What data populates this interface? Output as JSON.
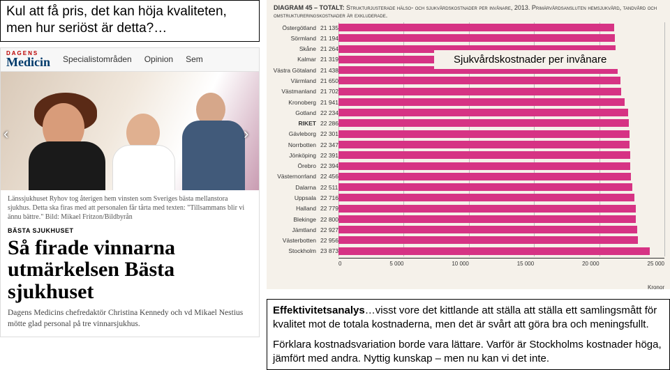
{
  "quote": {
    "text": "Kul att få pris, det kan höja kvaliteten, men hur seriöst är detta?…"
  },
  "news": {
    "logo_top": "DAGENS",
    "logo_bottom": "Medicin",
    "nav": {
      "item1": "Specialistområden",
      "item2": "Opinion",
      "item3": "Sem"
    },
    "caption": "Länssjukhuset Ryhov tog återigen hem vinsten som Sveriges bästa mellanstora sjukhus. Detta ska firas med att personalen får tårta med texten: \"Tillsammans blir vi ännu bättre.\" Bild: Mikael Fritzon/Bildbyrån",
    "kicker": "BÄSTA SJUKHUSET",
    "headline": "Så firade vinnarna utmärkelsen Bästa sjukhuset",
    "lede": "Dagens Medicins chefredaktör Christina Kennedy och vd Mikael Nestius mötte glad personal på tre vinnarsjukhus."
  },
  "chart": {
    "type": "bar",
    "title_prefix": "DIAGRAM 45 – TOTALT:",
    "title_rest": " Strukturjusterade hälso- och sjukvårdskostnader per invånare, 2013. Primärvårdsansluten hemsjukvård, tandvård och omstruktureringskostnader är exkluderade.",
    "overlay": "Sjukvårdskostnader per invånare",
    "bar_color": "#d63384",
    "background_color": "#f5f1ea",
    "xlim": [
      0,
      25000
    ],
    "xtick_step": 5000,
    "axis_unit": "Kronor",
    "rows": [
      {
        "label": "Östergötland",
        "value": 21135
      },
      {
        "label": "Sörmland",
        "value": 21194
      },
      {
        "label": "Skåne",
        "value": 21264
      },
      {
        "label": "Kalmar",
        "value": 21319
      },
      {
        "label": "Västra Götaland",
        "value": 21438
      },
      {
        "label": "Värmland",
        "value": 21650
      },
      {
        "label": "Västmanland",
        "value": 21702
      },
      {
        "label": "Kronoberg",
        "value": 21941
      },
      {
        "label": "Gotland",
        "value": 22234
      },
      {
        "label": "RIKET",
        "value": 22286,
        "bold": true
      },
      {
        "label": "Gävleborg",
        "value": 22301
      },
      {
        "label": "Norrbotten",
        "value": 22347
      },
      {
        "label": "Jönköping",
        "value": 22391
      },
      {
        "label": "Örebro",
        "value": 22394
      },
      {
        "label": "Västernorrland",
        "value": 22456
      },
      {
        "label": "Dalarna",
        "value": 22511
      },
      {
        "label": "Uppsala",
        "value": 22716
      },
      {
        "label": "Halland",
        "value": 22779
      },
      {
        "label": "Blekinge",
        "value": 22800
      },
      {
        "label": "Jämtland",
        "value": 22927
      },
      {
        "label": "Västerbotten",
        "value": 22956
      },
      {
        "label": "Stockholm",
        "value": 23873
      }
    ],
    "xticks": [
      "0",
      "5 000",
      "10 000",
      "15 000",
      "20 000",
      "25 000"
    ]
  },
  "analysis": {
    "p1_bold": "Effektivitetsanalys",
    "p1_rest": "…visst vore det kittlande att ställa att ställa ett samlingsmått för kvalitet mot de totala kostnaderna, men det är svårt att göra bra och meningsfullt.",
    "p2": "Förklara kostnadsvariation borde vara lättare. Varför är Stockholms kostnader höga, jämfört med andra. Nyttig kunskap – men nu kan vi det inte."
  }
}
